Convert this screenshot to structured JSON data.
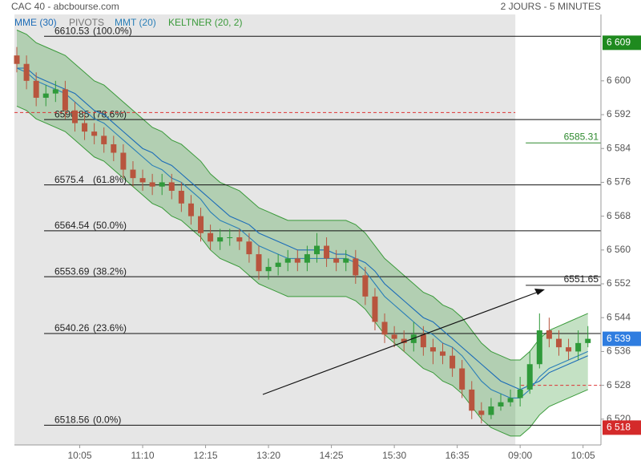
{
  "chart_data": {
    "type": "candlestick",
    "title": "CAC 40 - abcbourse.com",
    "subtitle": "2 JOURS - 5 MINUTES",
    "pivots_label": "PIVOTS",
    "categories": [
      null,
      null,
      null,
      null,
      null,
      null,
      null,
      null,
      null,
      null,
      null,
      null,
      null,
      null,
      null,
      null,
      null,
      null,
      null,
      null,
      null,
      null,
      null,
      null,
      null,
      null,
      null,
      null,
      null,
      null,
      null,
      null,
      null,
      null,
      null,
      null,
      null,
      null,
      null,
      null,
      null,
      null,
      null,
      null,
      null,
      null,
      null,
      null,
      null,
      null,
      null,
      null,
      null,
      null,
      null,
      null,
      null,
      null,
      null,
      null
    ],
    "open": [
      6606,
      6604,
      6600,
      6596,
      6597,
      6598,
      6593,
      6590,
      6588,
      6587,
      6585,
      6583,
      6579,
      6577,
      6576,
      6575,
      6576,
      6574,
      6571,
      6568,
      6564,
      6562,
      6563,
      6563,
      6562,
      6559,
      6555,
      6556,
      6557,
      6558,
      6557,
      6559,
      6561,
      6558,
      6557,
      6558,
      6554,
      6549,
      6543,
      6540,
      6539,
      6538,
      6540,
      6537,
      6536,
      6535,
      6532,
      6527,
      6522,
      6521,
      6523,
      6524,
      6525,
      6527,
      6533,
      6541,
      6539,
      6537,
      6536,
      6538
    ],
    "high": [
      6608,
      6606,
      6602,
      6599,
      6600,
      6600,
      6595,
      6592,
      6590,
      6589,
      6587,
      6585,
      6581,
      6579,
      6578,
      6578,
      6578,
      6576,
      6573,
      6570,
      6566,
      6565,
      6565,
      6565,
      6564,
      6561,
      6558,
      6559,
      6560,
      6560,
      6561,
      6564,
      6563,
      6560,
      6560,
      6560,
      6556,
      6551,
      6545,
      6542,
      6541,
      6543,
      6542,
      6539,
      6538,
      6537,
      6534,
      6529,
      6524,
      6525,
      6526,
      6527,
      6530,
      6536,
      6545,
      6544,
      6541,
      6539,
      6541,
      6542
    ],
    "low": [
      6602,
      6598,
      6594,
      6594,
      6595,
      6591,
      6588,
      6586,
      6585,
      6583,
      6581,
      6577,
      6575,
      6574,
      6573,
      6573,
      6572,
      6569,
      6566,
      6562,
      6560,
      6560,
      6561,
      6560,
      6557,
      6553,
      6553,
      6554,
      6555,
      6555,
      6555,
      6557,
      6556,
      6555,
      6555,
      6552,
      6547,
      6541,
      6538,
      6537,
      6536,
      6536,
      6535,
      6533,
      6533,
      6530,
      6525,
      6520,
      6519,
      6520,
      6522,
      6523,
      6523,
      6526,
      6532,
      6537,
      6535,
      6534,
      6534,
      6537
    ],
    "close": [
      6604,
      6600,
      6596,
      6597,
      6598,
      6593,
      6590,
      6588,
      6587,
      6585,
      6583,
      6579,
      6577,
      6576,
      6575,
      6576,
      6574,
      6571,
      6568,
      6564,
      6562,
      6563,
      6563,
      6562,
      6559,
      6555,
      6556,
      6557,
      6558,
      6557,
      6559,
      6561,
      6558,
      6557,
      6558,
      6554,
      6549,
      6543,
      6540,
      6539,
      6538,
      6540,
      6537,
      6536,
      6535,
      6532,
      6527,
      6522,
      6521,
      6523,
      6524,
      6525,
      6527,
      6533,
      6541,
      6539,
      6537,
      6536,
      6538,
      6539
    ],
    "up_color": "#2f9a3a",
    "down_color": "#b8553e",
    "series": [
      {
        "name": "MME (30)",
        "color": "#1c6cb8",
        "values": [
          6603,
          6603,
          6601,
          6600,
          6599,
          6598,
          6597,
          6595,
          6593,
          6592,
          6590,
          6588,
          6586,
          6584,
          6583,
          6581,
          6580,
          6578,
          6576,
          6574,
          6572,
          6570,
          6568,
          6567,
          6566,
          6564,
          6563,
          6562,
          6561,
          6560,
          6560,
          6560,
          6560,
          6559,
          6559,
          6558,
          6557,
          6555,
          6552,
          6550,
          6548,
          6546,
          6544,
          6543,
          6541,
          6539,
          6537,
          6535,
          6533,
          6531,
          6529,
          6528,
          6527,
          6528,
          6529,
          6531,
          6532,
          6533,
          6534,
          6535
        ]
      },
      {
        "name": "MMT (20)",
        "color": "#2a7fb8",
        "values": [
          6603,
          6602,
          6600,
          6599,
          6598,
          6597,
          6595,
          6593,
          6591,
          6590,
          6588,
          6586,
          6584,
          6582,
          6580,
          6579,
          6577,
          6576,
          6574,
          6572,
          6569,
          6567,
          6566,
          6565,
          6563,
          6561,
          6560,
          6559,
          6558,
          6558,
          6558,
          6558,
          6558,
          6558,
          6558,
          6557,
          6555,
          6552,
          6549,
          6547,
          6545,
          6543,
          6541,
          6540,
          6538,
          6537,
          6535,
          6532,
          6529,
          6527,
          6526,
          6525,
          6525,
          6527,
          6530,
          6532,
          6533,
          6534,
          6535,
          6536
        ]
      },
      {
        "name": "KELTNER (20, 2)",
        "color": "#3a9a3a",
        "upper": [
          6612,
          6611,
          6609,
          6608,
          6607,
          6606,
          6604,
          6602,
          6600,
          6599,
          6597,
          6595,
          6593,
          6591,
          6589,
          6588,
          6586,
          6585,
          6583,
          6581,
          6578,
          6576,
          6575,
          6574,
          6572,
          6570,
          6569,
          6568,
          6567,
          6567,
          6567,
          6567,
          6567,
          6567,
          6567,
          6566,
          6564,
          6561,
          6558,
          6556,
          6554,
          6552,
          6550,
          6549,
          6547,
          6546,
          6544,
          6541,
          6538,
          6536,
          6535,
          6534,
          6534,
          6536,
          6539,
          6541,
          6542,
          6543,
          6544,
          6545
        ],
        "lower": [
          6594,
          6593,
          6591,
          6590,
          6589,
          6588,
          6586,
          6584,
          6582,
          6581,
          6579,
          6577,
          6575,
          6573,
          6571,
          6570,
          6568,
          6567,
          6565,
          6563,
          6560,
          6558,
          6557,
          6556,
          6554,
          6552,
          6551,
          6550,
          6549,
          6549,
          6549,
          6549,
          6549,
          6549,
          6549,
          6548,
          6546,
          6543,
          6540,
          6538,
          6536,
          6534,
          6532,
          6531,
          6529,
          6528,
          6526,
          6523,
          6520,
          6518,
          6517,
          6516,
          6516,
          6518,
          6521,
          6523,
          6524,
          6525,
          6526,
          6527
        ]
      }
    ],
    "levels": [
      {
        "price": 6610.53,
        "label": "(100.0%)"
      },
      {
        "price": 6590.85,
        "label": "(78.6%)"
      },
      {
        "price": 6575.4,
        "label": "(61.8%)"
      },
      {
        "price": 6564.54,
        "label": "(50.0%)"
      },
      {
        "price": 6553.69,
        "label": "(38.2%)"
      },
      {
        "price": 6540.26,
        "label": "(23.6%)"
      },
      {
        "price": 6518.56,
        "label": "(0.0%)"
      }
    ],
    "pivots": [
      6592.5,
      6528
    ],
    "day_levels": [
      {
        "value": 6585.31,
        "color": "#2f8a2f"
      },
      {
        "value": 6551.65,
        "color": "#222222"
      }
    ],
    "price_tags": [
      {
        "value": 6609,
        "label": "6 609",
        "color": "#1f8a1f"
      },
      {
        "value": 6539,
        "label": "6 539",
        "color": "#2f7de0"
      },
      {
        "value": 6518,
        "label": "6 518",
        "color": "#d42a2a"
      }
    ],
    "ylim": [
      6513.9,
      6615.7
    ],
    "yticks": [
      {
        "value": 6520,
        "label": "6 520"
      },
      {
        "value": 6528,
        "label": "6 528"
      },
      {
        "value": 6536,
        "label": "6 536"
      },
      {
        "value": 6544,
        "label": "6 544"
      },
      {
        "value": 6552,
        "label": "6 552"
      },
      {
        "value": 6560,
        "label": "6 560"
      },
      {
        "value": 6568,
        "label": "6 568"
      },
      {
        "value": 6576,
        "label": "6 576"
      },
      {
        "value": 6584,
        "label": "6 584"
      },
      {
        "value": 6592,
        "label": "6 592"
      },
      {
        "value": 6600,
        "label": "6 600"
      }
    ],
    "xticks": [
      {
        "value": 6.5,
        "label": "10:05"
      },
      {
        "value": 13,
        "label": "11:10"
      },
      {
        "value": 19.5,
        "label": "12:15"
      },
      {
        "value": 26,
        "label": "13:20"
      },
      {
        "value": 32.5,
        "label": "14:25"
      },
      {
        "value": 39,
        "label": "15:30"
      },
      {
        "value": 45.5,
        "label": "16:35"
      },
      {
        "value": 52,
        "label": "09:00"
      },
      {
        "value": 58.5,
        "label": "10:05"
      }
    ]
  }
}
